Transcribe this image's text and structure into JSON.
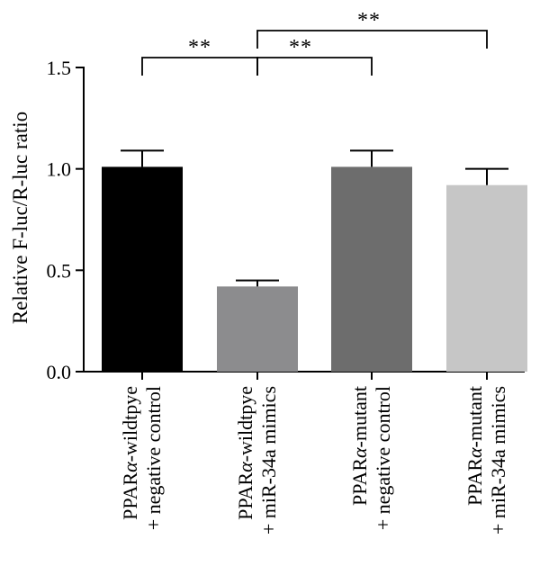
{
  "chart_data": {
    "type": "bar",
    "ylabel": "Relative F-luc/R-luc ratio",
    "ylim": [
      0,
      1.5
    ],
    "yticks": [
      {
        "value": 0,
        "label": "0.0"
      },
      {
        "value": 0.5,
        "label": "0.5"
      },
      {
        "value": 1.0,
        "label": "1.0"
      },
      {
        "value": 1.5,
        "label": "1.5"
      }
    ],
    "categories": [
      {
        "line1_pre": "PPAR",
        "line1_greek": "α",
        "line1_post": "-wildtpye",
        "line2": "+ negative control"
      },
      {
        "line1_pre": "PPAR",
        "line1_greek": "α",
        "line1_post": "-wildtpye",
        "line2": "+ miR-34a mimics"
      },
      {
        "line1_pre": "PPAR",
        "line1_greek": "α",
        "line1_post": "-mutant",
        "line2": "+ negative control"
      },
      {
        "line1_pre": "PPAR",
        "line1_greek": "α",
        "line1_post": "-mutant",
        "line2": "+ miR-34a mimics"
      }
    ],
    "values": [
      1.01,
      0.42,
      1.01,
      0.92
    ],
    "errors": [
      0.08,
      0.03,
      0.08,
      0.08
    ],
    "colors": [
      "#000000",
      "#8c8c8e",
      "#6d6d6d",
      "#c6c6c6"
    ],
    "significance": [
      {
        "from": 0,
        "to": 1,
        "label": "**"
      },
      {
        "from": 1,
        "to": 2,
        "label": "**"
      },
      {
        "from": 1,
        "to": 3,
        "label": "**"
      }
    ],
    "grid": false,
    "legend": "none"
  }
}
